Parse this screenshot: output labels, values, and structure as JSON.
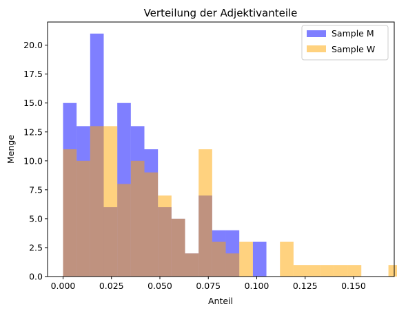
{
  "chart_data": {
    "type": "bar",
    "title": "Verteilung der Adjektivanteile",
    "xlabel": "Anteil",
    "ylabel": "Menge",
    "xlim": [
      -0.008,
      0.171
    ],
    "ylim": [
      0,
      22
    ],
    "xticks": [
      0.0,
      0.025,
      0.05,
      0.075,
      0.1,
      0.125,
      0.15
    ],
    "xtick_labels": [
      "0.000",
      "0.025",
      "0.050",
      "0.075",
      "0.100",
      "0.125",
      "0.150"
    ],
    "yticks": [
      0,
      2.5,
      5,
      7.5,
      10,
      12.5,
      15,
      17.5,
      20
    ],
    "ytick_labels": [
      "0.0",
      "2.5",
      "5.0",
      "7.5",
      "10.0",
      "12.5",
      "15.0",
      "17.5",
      "20.0"
    ],
    "grid": false,
    "legend_position": "top-right",
    "series": [
      {
        "name": "Sample M",
        "color": "#0000ff",
        "opacity": 0.5,
        "bin_start": 0.0,
        "bin_width": 0.007,
        "values": [
          15,
          13,
          21,
          6,
          15,
          13,
          11,
          6,
          5,
          2,
          7,
          4,
          4,
          0,
          3,
          0,
          0,
          0,
          0,
          0
        ]
      },
      {
        "name": "Sample W",
        "color": "#ffa500",
        "opacity": 0.5,
        "bin_start": 0.0,
        "bin_width": 0.007,
        "values": [
          11,
          10,
          13,
          13,
          8,
          10,
          9,
          7,
          5,
          2,
          11,
          3,
          2,
          3,
          0,
          0,
          3,
          1,
          1,
          1,
          1,
          1,
          0,
          0,
          1,
          0,
          0,
          0,
          0,
          0,
          0
        ]
      }
    ]
  }
}
